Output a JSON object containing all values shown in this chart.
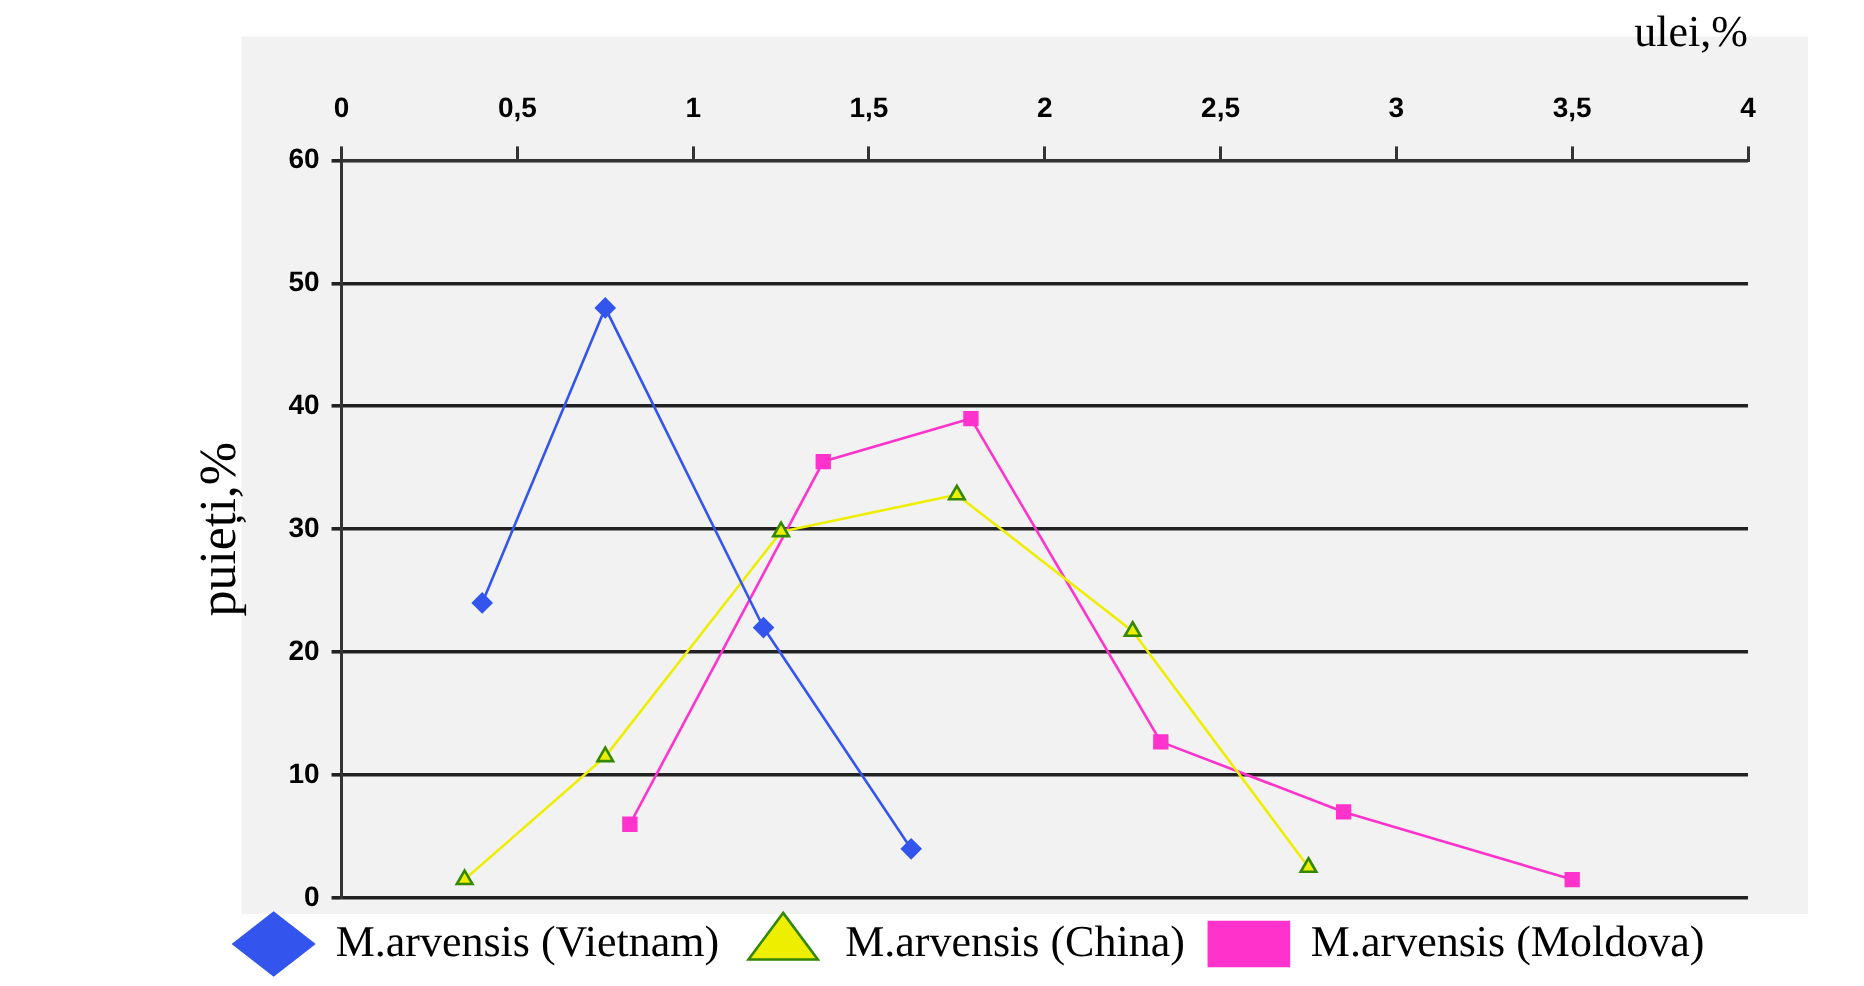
{
  "chart_data": {
    "type": "line",
    "xlabel": "ulei,%",
    "ylabel": "puieți,%",
    "xlim": [
      0,
      4
    ],
    "xticks": [
      0,
      {
        "value": 0.5,
        "label": "0,5"
      },
      1,
      {
        "value": 1.5,
        "label": "1,5"
      },
      2,
      {
        "value": 2.5,
        "label": "2,5"
      },
      3,
      {
        "value": 3.5,
        "label": "3,5"
      },
      4
    ],
    "ylim": [
      0,
      60
    ],
    "yticks": [
      0,
      10,
      20,
      30,
      40,
      50,
      60
    ],
    "grid": "y",
    "legend": "bottom",
    "series": [
      {
        "name": "M.arvensis (Vietnam)",
        "color": "#3355ee",
        "marker": "diamond",
        "x": [
          0.4,
          0.75,
          1.2,
          1.62
        ],
        "values": [
          24,
          48,
          22,
          4
        ]
      },
      {
        "name": "M.arvensis (China)",
        "color": "#eeee00",
        "marker": "triangle",
        "x": [
          0.35,
          0.75,
          1.25,
          1.75,
          2.25,
          2.75
        ],
        "values": [
          1.5,
          11.5,
          29.8,
          32.8,
          21.7,
          2.5
        ]
      },
      {
        "name": "M.arvensis (Moldova)",
        "color": "#ff33cc",
        "marker": "square",
        "x": [
          0.82,
          1.37,
          1.79,
          2.33,
          2.85,
          3.5
        ],
        "values": [
          6,
          35.5,
          39,
          12.7,
          7,
          1.5
        ]
      }
    ]
  }
}
